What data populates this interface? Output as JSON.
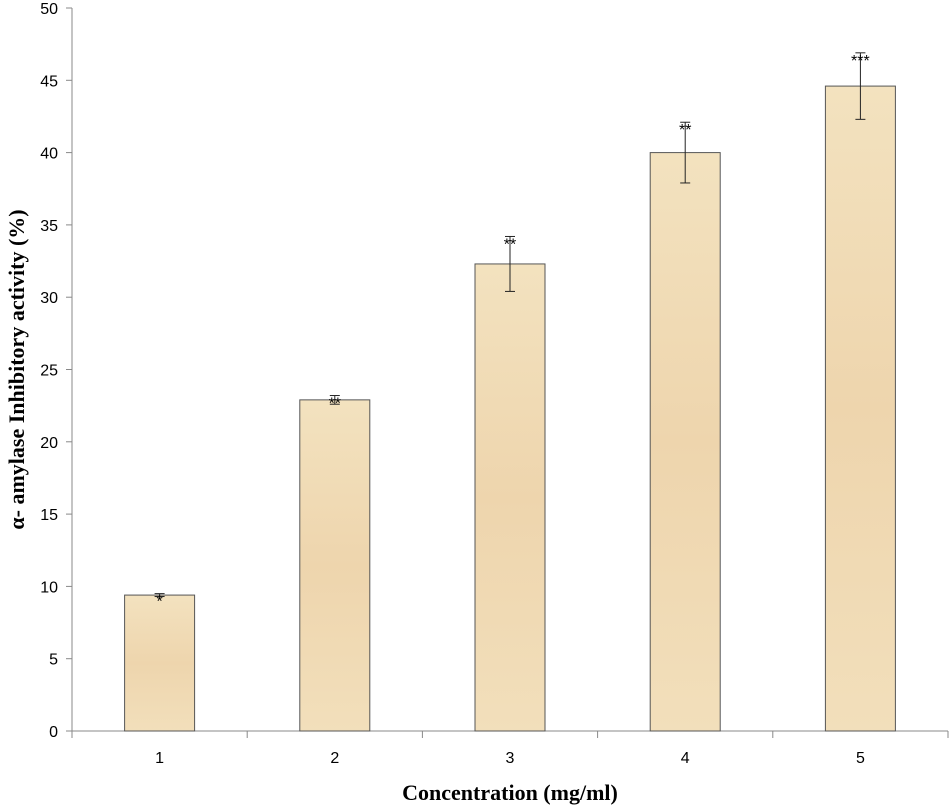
{
  "chart_data": {
    "type": "bar",
    "categories": [
      "1",
      "2",
      "3",
      "4",
      "5"
    ],
    "values": [
      9.4,
      22.9,
      32.3,
      40.0,
      44.6
    ],
    "error": [
      0.1,
      0.3,
      1.9,
      2.1,
      2.3
    ],
    "significance": [
      "*",
      "**",
      "**",
      "**",
      "***"
    ],
    "xlabel": "Concentration (mg/ml)",
    "ylabel": "α- amylase Inhibitory activity (%)",
    "ylim": [
      0,
      50
    ],
    "yticks": [
      "0",
      "5",
      "10",
      "15",
      "20",
      "25",
      "30",
      "35",
      "40",
      "45",
      "50"
    ],
    "grid": false,
    "legend": "none",
    "bar_color": "#f0dcb4",
    "bar_edge_color": "#555555"
  }
}
